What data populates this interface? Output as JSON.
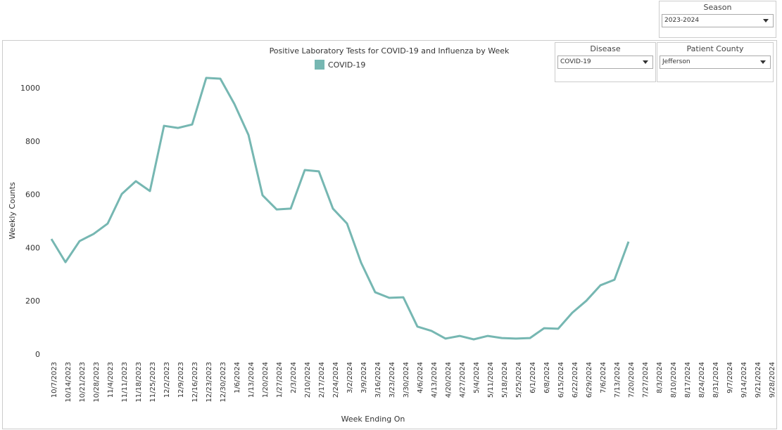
{
  "filters": {
    "season": {
      "label": "Season",
      "value": "2023-2024"
    },
    "disease": {
      "label": "Disease",
      "value": "COVID-19"
    },
    "county": {
      "label": "Patient County",
      "value": "Jefferson"
    }
  },
  "chart_data": {
    "type": "line",
    "title": "Positive Laboratory Tests for COVID-19 and Influenza by Week",
    "x_label": "Week Ending On",
    "y_label": "Weekly Counts",
    "categories": [
      "10/7/2023",
      "10/14/2023",
      "10/21/2023",
      "10/28/2023",
      "11/4/2023",
      "11/11/2023",
      "11/18/2023",
      "11/25/2023",
      "12/2/2023",
      "12/9/2023",
      "12/16/2023",
      "12/23/2023",
      "12/30/2023",
      "1/6/2024",
      "1/13/2024",
      "1/20/2024",
      "1/27/2024",
      "2/3/2024",
      "2/10/2024",
      "2/17/2024",
      "2/24/2024",
      "3/2/2024",
      "3/9/2024",
      "3/16/2024",
      "3/23/2024",
      "3/30/2024",
      "4/6/2024",
      "4/13/2024",
      "4/20/2024",
      "4/27/2024",
      "5/4/2024",
      "5/11/2024",
      "5/18/2024",
      "5/25/2024",
      "6/1/2024",
      "6/8/2024",
      "6/15/2024",
      "6/22/2024",
      "6/29/2024",
      "7/6/2024",
      "7/13/2024",
      "7/20/2024",
      "7/27/2024",
      "8/3/2024",
      "8/10/2024",
      "8/17/2024",
      "8/24/2024",
      "8/31/2024",
      "9/7/2024",
      "9/14/2024",
      "9/21/2024",
      "9/28/2024"
    ],
    "series": [
      {
        "name": "COVID-19",
        "color": "#76b7b2",
        "values": [
          435,
          348,
          427,
          454,
          493,
          604,
          652,
          615,
          860,
          852,
          865,
          1040,
          1037,
          942,
          826,
          599,
          546,
          549,
          694,
          689,
          549,
          493,
          346,
          235,
          214,
          216,
          106,
          90,
          61,
          71,
          58,
          71,
          63,
          61,
          63,
          100,
          98,
          158,
          203,
          261,
          282,
          425,
          null,
          null,
          null,
          null,
          null,
          null,
          null,
          null,
          null,
          null
        ]
      }
    ],
    "ylim": [
      0,
      1100
    ],
    "yticks": [
      0,
      200,
      400,
      600,
      800,
      1000
    ],
    "grid": false
  }
}
